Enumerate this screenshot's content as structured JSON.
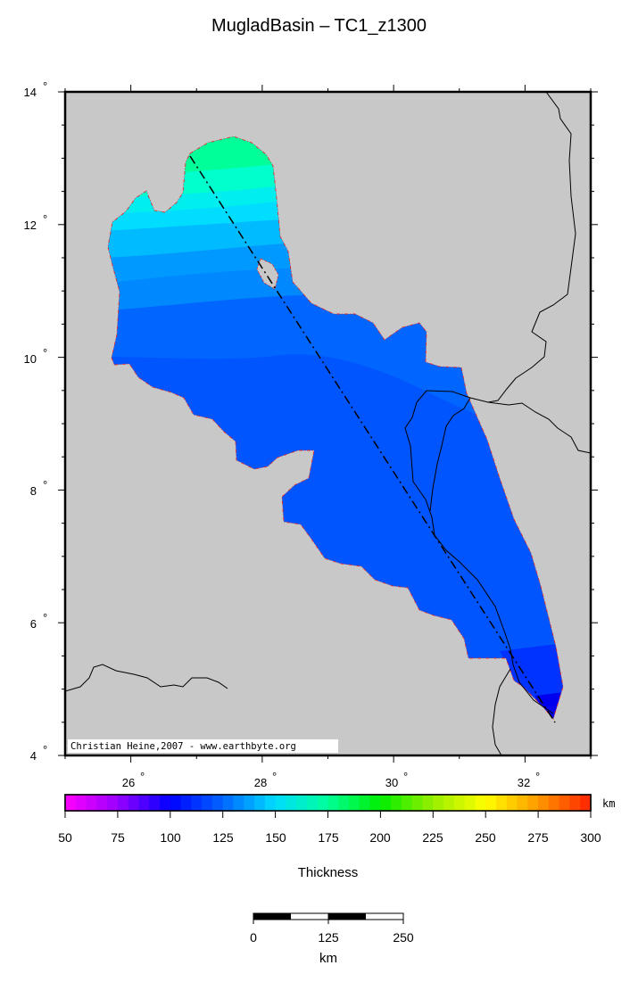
{
  "title": "MugladBasin – TC1_z1300",
  "map": {
    "lat_ticks": [
      "14",
      "12",
      "10",
      "8",
      "6",
      "4"
    ],
    "lon_ticks": [
      "26",
      "28",
      "30",
      "32"
    ],
    "degree_symbol": "°",
    "extent": {
      "lon_min": 25,
      "lon_max": 33,
      "lat_min": 4,
      "lat_max": 14
    },
    "credit": "Christian Heine,2007 - www.earthbyte.org",
    "colors": {
      "land": "#c8c8c8",
      "basin_outline": "#e03030",
      "border": "#000000"
    }
  },
  "colorbar": {
    "ticks": [
      "50",
      "75",
      "100",
      "125",
      "150",
      "175",
      "200",
      "225",
      "250",
      "275",
      "300"
    ],
    "unit": "km",
    "label": "Thickness",
    "min": 50,
    "max": 300
  },
  "scalebar": {
    "ticks": [
      "0",
      "125",
      "250"
    ],
    "unit": "km"
  }
}
